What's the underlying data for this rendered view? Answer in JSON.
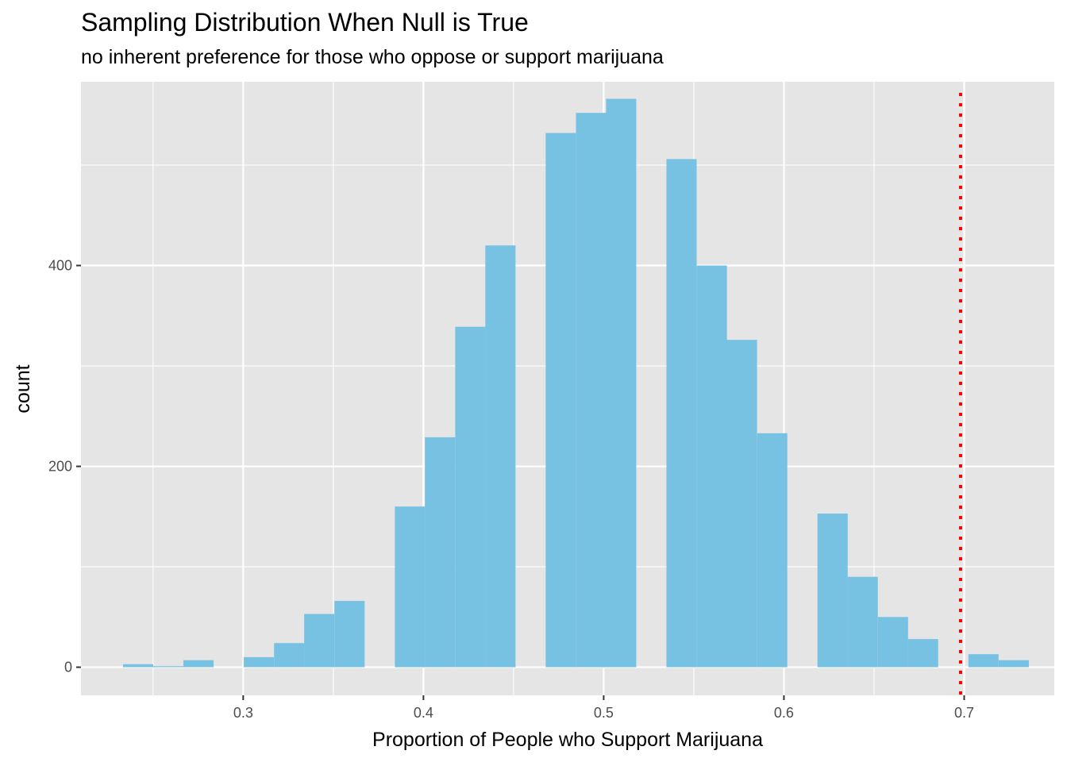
{
  "chart_data": {
    "type": "bar",
    "title": "Sampling Distribution When Null is True",
    "subtitle": "no inherent preference for those who oppose or support marijuana",
    "xlabel": "Proportion of People who Support Marijuana",
    "ylabel": "count",
    "xlim": [
      0.21,
      0.75
    ],
    "ylim": [
      -28,
      583
    ],
    "x_ticks": [
      0.3,
      0.4,
      0.5,
      0.6,
      0.7
    ],
    "x_tick_labels": [
      "0.3",
      "0.4",
      "0.5",
      "0.6",
      "0.7"
    ],
    "y_ticks": [
      0,
      200,
      400
    ],
    "y_tick_labels": [
      "0",
      "200",
      "400"
    ],
    "grid": true,
    "bin_width": 0.01675,
    "bins": [
      {
        "x": 0.2417,
        "count": 3
      },
      {
        "x": 0.2585,
        "count": 1
      },
      {
        "x": 0.2752,
        "count": 7
      },
      {
        "x": 0.3087,
        "count": 10
      },
      {
        "x": 0.3255,
        "count": 24
      },
      {
        "x": 0.3422,
        "count": 53
      },
      {
        "x": 0.359,
        "count": 66
      },
      {
        "x": 0.3925,
        "count": 160
      },
      {
        "x": 0.4092,
        "count": 229
      },
      {
        "x": 0.426,
        "count": 339
      },
      {
        "x": 0.4427,
        "count": 420
      },
      {
        "x": 0.4762,
        "count": 532
      },
      {
        "x": 0.493,
        "count": 552
      },
      {
        "x": 0.5097,
        "count": 566
      },
      {
        "x": 0.5432,
        "count": 506
      },
      {
        "x": 0.56,
        "count": 400
      },
      {
        "x": 0.5767,
        "count": 326
      },
      {
        "x": 0.5935,
        "count": 233
      },
      {
        "x": 0.627,
        "count": 153
      },
      {
        "x": 0.6437,
        "count": 90
      },
      {
        "x": 0.6605,
        "count": 50
      },
      {
        "x": 0.6772,
        "count": 28
      },
      {
        "x": 0.7107,
        "count": 13
      },
      {
        "x": 0.7275,
        "count": 7
      }
    ],
    "reference_line": {
      "x": 0.698,
      "style": "dotted"
    },
    "colors": {
      "bar": "#77c1e3",
      "reference_line": "#ff0000",
      "panel": "#e5e5e5",
      "grid": "#ffffff"
    }
  }
}
